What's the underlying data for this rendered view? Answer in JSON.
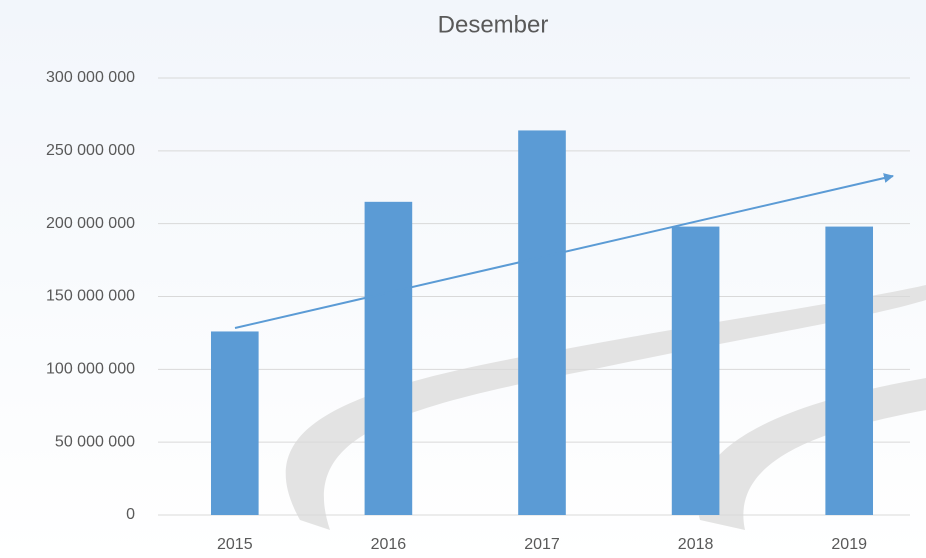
{
  "chart_data": {
    "type": "bar",
    "title": "Desember",
    "categories": [
      "2015",
      "2016",
      "2017",
      "2018",
      "2019"
    ],
    "values": [
      126000000,
      215000000,
      264000000,
      198000000,
      198000000
    ],
    "color": "#5b9bd5",
    "ylim": [
      0,
      300000000
    ],
    "yticks": [
      0,
      {
        "value": 50000000,
        "label": "50 000 000"
      },
      {
        "value": 100000000,
        "label": "100 000 000"
      },
      {
        "value": 150000000,
        "label": "150 000 000"
      },
      {
        "value": 200000000,
        "label": "200 000 000"
      },
      {
        "value": 250000000,
        "label": "250 000 000"
      },
      {
        "value": 300000000,
        "label": "300 000 000"
      }
    ],
    "grid": true
  }
}
